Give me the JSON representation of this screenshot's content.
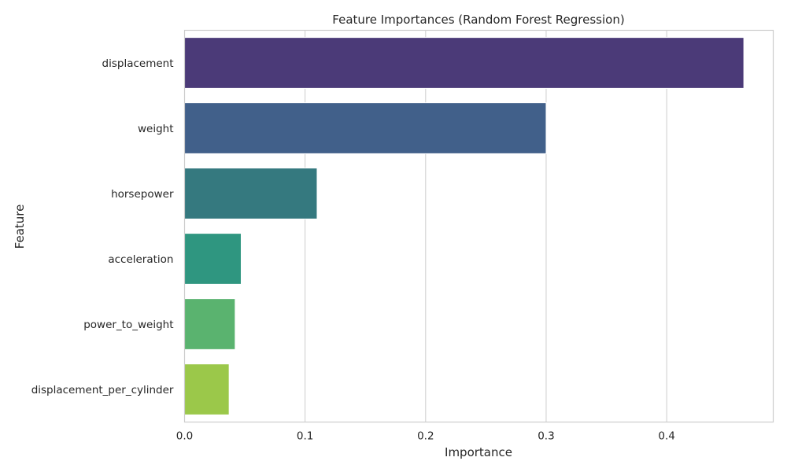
{
  "chart_data": {
    "type": "bar",
    "orientation": "horizontal",
    "title": "Feature Importances (Random Forest Regression)",
    "xlabel": "Importance",
    "ylabel": "Feature",
    "categories": [
      "displacement",
      "weight",
      "horsepower",
      "acceleration",
      "power_to_weight",
      "displacement_per_cylinder"
    ],
    "values": [
      0.464,
      0.3,
      0.11,
      0.047,
      0.042,
      0.037
    ],
    "colors": [
      "#4b3a78",
      "#41608a",
      "#35797f",
      "#2f9680",
      "#5ab36f",
      "#9bc84a"
    ],
    "xlim": [
      0,
      0.4884
    ],
    "xticks": [
      0.0,
      0.1,
      0.2,
      0.3,
      0.4
    ],
    "xtick_labels": [
      "0.0",
      "0.1",
      "0.2",
      "0.3",
      "0.4"
    ],
    "grid": true
  }
}
